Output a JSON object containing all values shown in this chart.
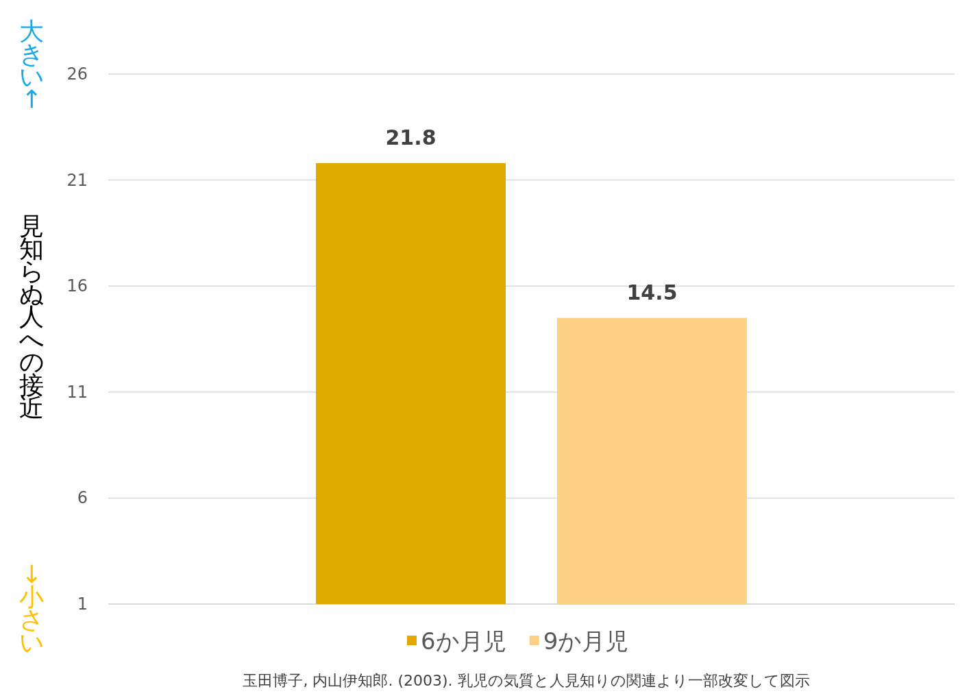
{
  "chart_data": {
    "type": "bar",
    "ylabel": "見知らぬ人への接近",
    "categories": [
      null
    ],
    "series": [
      {
        "name": "6か月児",
        "color": "#e0aa00",
        "values": [
          21.8
        ]
      },
      {
        "name": "9か月児",
        "color": "#fdd085",
        "values": [
          14.5
        ]
      }
    ],
    "ylim": [
      1,
      26
    ],
    "yticks": [
      1,
      6,
      11,
      16,
      21,
      26
    ],
    "grid": "y",
    "legend": "bottom",
    "data_labels": true,
    "annotations": [
      "大きい↑",
      "↓小さい",
      "玉田博子, 内山伊知郎. (2003). 乳児の気質と人見知りの関連より一部改変して図示"
    ]
  }
}
